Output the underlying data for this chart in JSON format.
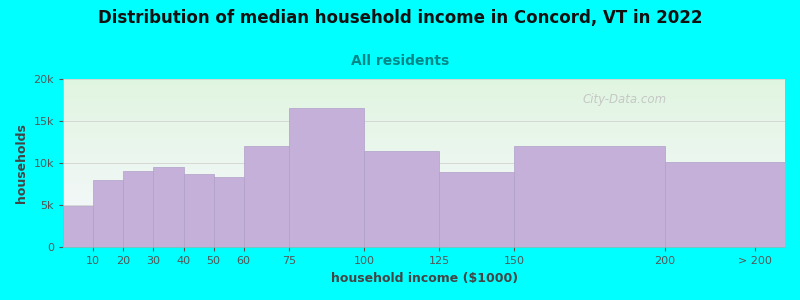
{
  "title": "Distribution of median household income in Concord, VT in 2022",
  "subtitle": "All residents",
  "xlabel": "household income ($1000)",
  "ylabel": "households",
  "background_color": "#00FFFF",
  "plot_bg_top": "#e0f5e0",
  "plot_bg_bottom": "#f8f8ff",
  "bar_color": "#c4b0d8",
  "bar_edge_color": "#b0a0c8",
  "values": [
    4900,
    8000,
    9100,
    9500,
    8700,
    8400,
    12000,
    16500,
    11500,
    9000,
    12000,
    10200
  ],
  "bin_edges": [
    0,
    10,
    20,
    30,
    40,
    50,
    60,
    75,
    100,
    125,
    150,
    200,
    240
  ],
  "ylim": [
    0,
    20000
  ],
  "yticks": [
    0,
    5000,
    10000,
    15000,
    20000
  ],
  "ytick_labels": [
    "0",
    "5k",
    "10k",
    "15k",
    "20k"
  ],
  "xtick_positions": [
    10,
    20,
    30,
    40,
    50,
    60,
    75,
    100,
    125,
    150,
    200,
    230
  ],
  "xtick_labels": [
    "10",
    "20",
    "30",
    "40",
    "50",
    "60",
    "75",
    "100",
    "125",
    "150",
    "200",
    "> 200"
  ],
  "watermark": "City-Data.com",
  "title_fontsize": 12,
  "subtitle_fontsize": 10,
  "axis_label_fontsize": 9,
  "tick_fontsize": 8
}
